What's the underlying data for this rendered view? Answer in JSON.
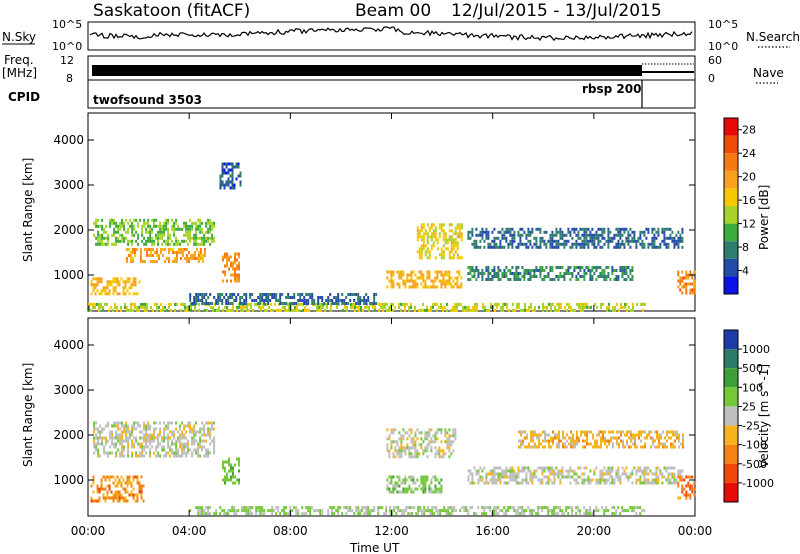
{
  "header": {
    "title": "Saskatoon (fitACF)",
    "beam": "Beam 00",
    "date_range": "12/Jul/2015 - 13/Jul/2015"
  },
  "top_panels": {
    "nsky_label": "N.Sky",
    "nsky_ticks": [
      "10^5",
      "10^0"
    ],
    "nsearch_label": "N.Search",
    "freq_label": "Freq.",
    "freq_unit": "[MHz]",
    "freq_ticks": [
      "12",
      "8"
    ],
    "nave_ticks": [
      "60",
      "0"
    ],
    "nave_label": "Nave",
    "cpid_label": "CPID",
    "cpid_segments": [
      {
        "name": "twofsound 3503",
        "start_hour": 0,
        "end_hour": 22
      },
      {
        "name": "rbsp 200",
        "start_hour": 22,
        "end_hour": 24
      }
    ]
  },
  "axes": {
    "ylabel": "Slant Range [km]",
    "yticks": [
      "1000",
      "2000",
      "3000",
      "4000"
    ],
    "xticks": [
      "00:00",
      "04:00",
      "08:00",
      "12:00",
      "16:00",
      "20:00",
      "00:00"
    ],
    "xlabel": "Time UT"
  },
  "power_colorbar": {
    "label": "Power [dB]",
    "ticks": [
      "4",
      "8",
      "12",
      "16",
      "20",
      "24",
      "28"
    ],
    "colors": [
      "#0a14e6",
      "#234ba8",
      "#2f7d6e",
      "#3caa3c",
      "#a6d22a",
      "#f5c800",
      "#f7a21e",
      "#f57a14",
      "#f04a0a",
      "#e60a0a"
    ]
  },
  "velocity_colorbar": {
    "label": "Velocity [m s^-1]",
    "ticks": [
      "1000",
      "500",
      "100",
      "25",
      "-25",
      "-100",
      "-500",
      "-1000"
    ],
    "colors": [
      "#1e3ca8",
      "#2d7a6a",
      "#3e9e3a",
      "#74c83a",
      "#bebebe",
      "#f5b41e",
      "#f58214",
      "#f0460a",
      "#e60a0a"
    ]
  },
  "chart_data": {
    "type": "heatmap",
    "title": "Saskatoon (fitACF)",
    "xlabel": "Time UT",
    "ylabel": "Slant Range [km]",
    "xlim": [
      0,
      24
    ],
    "ylim": [
      200,
      4600
    ],
    "panels": [
      {
        "name": "Power [dB]",
        "scale": [
          0,
          30
        ],
        "regions": [
          {
            "t0": 0.2,
            "t1": 5.0,
            "r0": 1700,
            "r1": 2250,
            "value": 12
          },
          {
            "t0": 1.5,
            "t1": 4.6,
            "r0": 1300,
            "r1": 1600,
            "value": 20
          },
          {
            "t0": 0.1,
            "t1": 2.0,
            "r0": 550,
            "r1": 950,
            "value": 18
          },
          {
            "t0": 5.3,
            "t1": 6.0,
            "r0": 850,
            "r1": 1500,
            "value": 21
          },
          {
            "t0": 0.0,
            "t1": 22.0,
            "r0": 220,
            "r1": 380,
            "value": 14
          },
          {
            "t0": 4.0,
            "t1": 11.5,
            "r0": 380,
            "r1": 600,
            "value": 6
          },
          {
            "t0": 11.8,
            "t1": 14.8,
            "r0": 700,
            "r1": 1100,
            "value": 18
          },
          {
            "t0": 13.0,
            "t1": 14.8,
            "r0": 1400,
            "r1": 2150,
            "value": 16
          },
          {
            "t0": 15.0,
            "t1": 21.5,
            "r0": 900,
            "r1": 1200,
            "value": 8
          },
          {
            "t0": 15.0,
            "t1": 23.5,
            "r0": 1600,
            "r1": 2050,
            "value": 6
          },
          {
            "t0": 5.2,
            "t1": 6.0,
            "r0": 2900,
            "r1": 3500,
            "value": 5
          },
          {
            "t0": 23.3,
            "t1": 24.0,
            "r0": 600,
            "r1": 1100,
            "value": 22
          }
        ]
      },
      {
        "name": "Velocity [m s^-1]",
        "scale": [
          -1000,
          1000
        ],
        "regions": [
          {
            "t0": 0.2,
            "t1": 5.0,
            "r0": 1500,
            "r1": 2300,
            "value": 0
          },
          {
            "t0": 0.1,
            "t1": 2.2,
            "r0": 550,
            "r1": 1100,
            "value": -400
          },
          {
            "t0": 5.3,
            "t1": 6.0,
            "r0": 900,
            "r1": 1500,
            "value": 300
          },
          {
            "t0": 4.0,
            "t1": 22.0,
            "r0": 220,
            "r1": 420,
            "value": 120
          },
          {
            "t0": 11.8,
            "t1": 14.5,
            "r0": 1500,
            "r1": 2150,
            "value": 0
          },
          {
            "t0": 11.8,
            "t1": 14.0,
            "r0": 700,
            "r1": 1100,
            "value": 200
          },
          {
            "t0": 15.0,
            "t1": 23.5,
            "r0": 900,
            "r1": 1300,
            "value": 0
          },
          {
            "t0": 17.0,
            "t1": 23.5,
            "r0": 1700,
            "r1": 2100,
            "value": -200
          },
          {
            "t0": 23.3,
            "t1": 24.0,
            "r0": 600,
            "r1": 1100,
            "value": -500
          }
        ]
      }
    ]
  }
}
